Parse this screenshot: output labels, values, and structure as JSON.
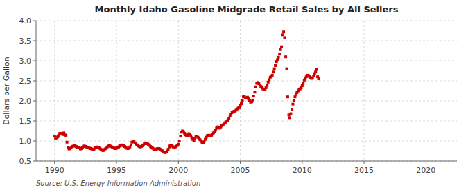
{
  "chart_data": {
    "type": "scatter",
    "title": "Monthly Idaho Gasoline Midgrade Retail Sales by All Sellers",
    "ylabel": "Dollars per Gallon",
    "annotations": [
      {
        "text": "Source: U.S. Energy Information Administration"
      }
    ],
    "xlim": [
      1988.5,
      2022.5
    ],
    "ylim": [
      0.5,
      4.0
    ],
    "xticks": [
      1990,
      1995,
      2000,
      2005,
      2010,
      2015,
      2020
    ],
    "yticks": [
      0.5,
      {
        "value": 1.0,
        "label": "1.0"
      },
      1.5,
      {
        "value": 2.0,
        "label": "2.0"
      },
      2.5,
      {
        "value": 3.0,
        "label": "3.0"
      },
      3.5,
      {
        "value": 4.0,
        "label": "4.0"
      }
    ],
    "grid": true,
    "color": "#cc0000",
    "marker": "square",
    "x": [
      1990.0,
      1990.08,
      1990.17,
      1990.25,
      1990.33,
      1990.42,
      1990.5,
      1990.58,
      1990.67,
      1990.75,
      1990.83,
      1990.92,
      1991.0,
      1991.08,
      1991.17,
      1991.25,
      1991.33,
      1991.42,
      1991.5,
      1991.58,
      1991.67,
      1991.75,
      1991.83,
      1991.92,
      1992.0,
      1992.08,
      1992.17,
      1992.25,
      1992.33,
      1992.42,
      1992.5,
      1992.58,
      1992.67,
      1992.75,
      1992.83,
      1992.92,
      1993.0,
      1993.08,
      1993.17,
      1993.25,
      1993.33,
      1993.42,
      1993.5,
      1993.58,
      1993.67,
      1993.75,
      1993.83,
      1993.92,
      1994.0,
      1994.08,
      1994.17,
      1994.25,
      1994.33,
      1994.42,
      1994.5,
      1994.58,
      1994.67,
      1994.75,
      1994.83,
      1994.92,
      1995.0,
      1995.08,
      1995.17,
      1995.25,
      1995.33,
      1995.42,
      1995.5,
      1995.58,
      1995.67,
      1995.75,
      1995.83,
      1995.92,
      1996.0,
      1996.08,
      1996.17,
      1996.25,
      1996.33,
      1996.42,
      1996.5,
      1996.58,
      1996.67,
      1996.75,
      1996.83,
      1996.92,
      1997.0,
      1997.08,
      1997.17,
      1997.25,
      1997.33,
      1997.42,
      1997.5,
      1997.58,
      1997.67,
      1997.75,
      1997.83,
      1997.92,
      1998.0,
      1998.08,
      1998.17,
      1998.25,
      1998.33,
      1998.42,
      1998.5,
      1998.58,
      1998.67,
      1998.75,
      1998.83,
      1998.92,
      1999.0,
      1999.08,
      1999.17,
      1999.25,
      1999.33,
      1999.42,
      1999.5,
      1999.58,
      1999.67,
      1999.75,
      1999.83,
      1999.92,
      2000.0,
      2000.08,
      2000.17,
      2000.25,
      2000.33,
      2000.42,
      2000.5,
      2000.58,
      2000.67,
      2000.75,
      2000.83,
      2000.92,
      2001.0,
      2001.08,
      2001.17,
      2001.25,
      2001.33,
      2001.42,
      2001.5,
      2001.58,
      2001.67,
      2001.75,
      2001.83,
      2001.92,
      2002.0,
      2002.08,
      2002.17,
      2002.25,
      2002.33,
      2002.42,
      2002.5,
      2002.58,
      2002.67,
      2002.75,
      2002.83,
      2002.92,
      2003.0,
      2003.08,
      2003.17,
      2003.25,
      2003.33,
      2003.42,
      2003.5,
      2003.58,
      2003.67,
      2003.75,
      2003.83,
      2003.92,
      2004.0,
      2004.08,
      2004.17,
      2004.25,
      2004.33,
      2004.42,
      2004.5,
      2004.58,
      2004.67,
      2004.75,
      2004.83,
      2004.92,
      2005.0,
      2005.08,
      2005.17,
      2005.25,
      2005.33,
      2005.42,
      2005.5,
      2005.58,
      2005.67,
      2005.75,
      2005.83,
      2005.92,
      2006.0,
      2006.08,
      2006.17,
      2006.25,
      2006.33,
      2006.42,
      2006.5,
      2006.58,
      2006.67,
      2006.75,
      2006.83,
      2006.92,
      2007.0,
      2007.08,
      2007.17,
      2007.25,
      2007.33,
      2007.42,
      2007.5,
      2007.58,
      2007.67,
      2007.75,
      2007.83,
      2007.92,
      2008.0,
      2008.08,
      2008.17,
      2008.25,
      2008.33,
      2008.42,
      2008.5,
      2008.58,
      2008.67,
      2008.75,
      2008.83,
      2008.92,
      2009.0,
      2009.08,
      2009.17,
      2009.25,
      2009.33,
      2009.42,
      2009.5,
      2009.58,
      2009.67,
      2009.75,
      2009.83,
      2009.92,
      2010.0,
      2010.08,
      2010.17,
      2010.25,
      2010.33,
      2010.42,
      2010.5,
      2010.58,
      2010.67,
      2010.75,
      2010.83,
      2010.92,
      2011.0,
      2011.08,
      2011.17,
      2011.25,
      2011.33
    ],
    "values": [
      1.12,
      1.07,
      1.08,
      1.1,
      1.14,
      1.19,
      1.19,
      1.18,
      1.16,
      1.2,
      1.15,
      1.14,
      0.97,
      0.83,
      0.8,
      0.81,
      0.83,
      0.86,
      0.87,
      0.88,
      0.87,
      0.86,
      0.84,
      0.83,
      0.83,
      0.8,
      0.81,
      0.84,
      0.87,
      0.87,
      0.86,
      0.85,
      0.84,
      0.83,
      0.82,
      0.81,
      0.8,
      0.78,
      0.79,
      0.82,
      0.84,
      0.85,
      0.84,
      0.83,
      0.81,
      0.79,
      0.77,
      0.76,
      0.78,
      0.8,
      0.82,
      0.85,
      0.87,
      0.88,
      0.87,
      0.86,
      0.84,
      0.83,
      0.82,
      0.81,
      0.82,
      0.83,
      0.85,
      0.87,
      0.89,
      0.9,
      0.89,
      0.88,
      0.86,
      0.84,
      0.82,
      0.81,
      0.82,
      0.85,
      0.9,
      0.97,
      1.0,
      0.98,
      0.95,
      0.92,
      0.9,
      0.88,
      0.86,
      0.85,
      0.86,
      0.88,
      0.9,
      0.93,
      0.95,
      0.94,
      0.93,
      0.91,
      0.89,
      0.86,
      0.84,
      0.82,
      0.8,
      0.78,
      0.78,
      0.8,
      0.81,
      0.81,
      0.8,
      0.78,
      0.76,
      0.74,
      0.72,
      0.71,
      0.72,
      0.74,
      0.79,
      0.85,
      0.88,
      0.88,
      0.87,
      0.85,
      0.84,
      0.85,
      0.87,
      0.89,
      0.92,
      1.0,
      1.12,
      1.22,
      1.25,
      1.23,
      1.19,
      1.15,
      1.12,
      1.14,
      1.18,
      1.17,
      1.13,
      1.08,
      1.04,
      1.01,
      1.07,
      1.12,
      1.11,
      1.09,
      1.06,
      1.03,
      0.99,
      0.96,
      0.96,
      0.99,
      1.04,
      1.09,
      1.13,
      1.14,
      1.14,
      1.13,
      1.14,
      1.17,
      1.2,
      1.23,
      1.27,
      1.32,
      1.35,
      1.33,
      1.32,
      1.35,
      1.38,
      1.4,
      1.42,
      1.45,
      1.47,
      1.5,
      1.52,
      1.57,
      1.62,
      1.67,
      1.71,
      1.73,
      1.74,
      1.75,
      1.77,
      1.8,
      1.82,
      1.83,
      1.88,
      1.93,
      2.01,
      2.1,
      2.12,
      2.08,
      2.07,
      2.09,
      2.05,
      2.01,
      1.97,
      1.98,
      2.02,
      2.12,
      2.22,
      2.35,
      2.44,
      2.46,
      2.43,
      2.39,
      2.36,
      2.33,
      2.3,
      2.28,
      2.28,
      2.33,
      2.39,
      2.47,
      2.53,
      2.59,
      2.61,
      2.64,
      2.72,
      2.8,
      2.88,
      2.98,
      3.03,
      3.09,
      3.17,
      3.28,
      3.35,
      3.65,
      3.72,
      3.58,
      3.1,
      2.8,
      2.1,
      1.65,
      1.58,
      1.68,
      1.78,
      1.92,
      2.0,
      2.1,
      2.16,
      2.21,
      2.25,
      2.28,
      2.3,
      2.33,
      2.38,
      2.44,
      2.52,
      2.56,
      2.6,
      2.64,
      2.63,
      2.61,
      2.58,
      2.56,
      2.57,
      2.62,
      2.68,
      2.72,
      2.78,
      2.6,
      2.55
    ]
  }
}
